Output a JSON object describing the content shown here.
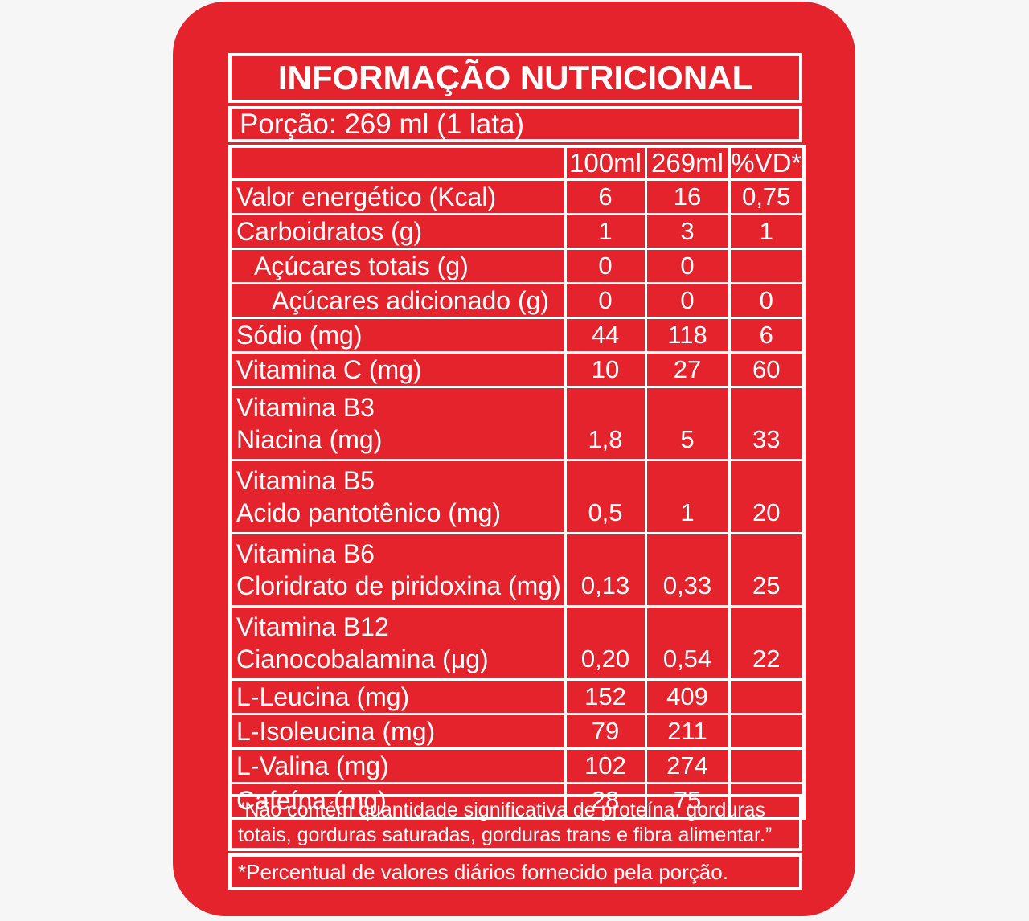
{
  "page": {
    "background_color": "#f6f6f6",
    "card_color": "#e4232c",
    "border_color": "#ffffff",
    "text_color": "#ffffff"
  },
  "header": {
    "title": "INFORMAÇÃO NUTRICIONAL",
    "portion": "Porção: 269 ml (1 lata)"
  },
  "table": {
    "columns": [
      "100ml",
      "269ml",
      "%VD*"
    ],
    "rows": [
      {
        "label": [
          "Valor energético (Kcal)"
        ],
        "indent": 0,
        "values": [
          "6",
          "16",
          "0,75"
        ]
      },
      {
        "label": [
          "Carboidratos (g)"
        ],
        "indent": 0,
        "values": [
          "1",
          "3",
          "1"
        ]
      },
      {
        "label": [
          "Açúcares totais (g)"
        ],
        "indent": 1,
        "values": [
          "0",
          "0",
          ""
        ]
      },
      {
        "label": [
          "Açúcares adicionado (g)"
        ],
        "indent": 2,
        "values": [
          "0",
          "0",
          "0"
        ]
      },
      {
        "label": [
          "Sódio (mg)"
        ],
        "indent": 0,
        "values": [
          "44",
          "118",
          "6"
        ]
      },
      {
        "label": [
          "Vitamina C (mg)"
        ],
        "indent": 0,
        "values": [
          "10",
          "27",
          "60"
        ]
      },
      {
        "label": [
          "Vitamina B3",
          "Niacina (mg)"
        ],
        "indent": 0,
        "values": [
          "1,8",
          "5",
          "33"
        ]
      },
      {
        "label": [
          "Vitamina B5",
          "Acido pantotênico (mg)"
        ],
        "indent": 0,
        "values": [
          "0,5",
          "1",
          "20"
        ]
      },
      {
        "label": [
          "Vitamina B6",
          "Cloridrato de piridoxina (mg)"
        ],
        "indent": 0,
        "values": [
          "0,13",
          "0,33",
          "25"
        ]
      },
      {
        "label": [
          "Vitamina B12",
          "Cianocobalamina (μg)"
        ],
        "indent": 0,
        "values": [
          "0,20",
          "0,54",
          "22"
        ]
      },
      {
        "label": [
          "L-Leucina (mg)"
        ],
        "indent": 0,
        "values": [
          "152",
          "409",
          ""
        ]
      },
      {
        "label": [
          "L-Isoleucina (mg)"
        ],
        "indent": 0,
        "values": [
          "79",
          "211",
          ""
        ]
      },
      {
        "label": [
          "L-Valina (mg)"
        ],
        "indent": 0,
        "values": [
          "102",
          "274",
          ""
        ]
      },
      {
        "label": [
          "Cafeína (mg)"
        ],
        "indent": 0,
        "values": [
          "28",
          "75",
          ""
        ]
      }
    ]
  },
  "footnotes": {
    "no_significant": [
      "“Não contém quantidade significativa de proteína, gorduras",
      "totais, gorduras saturadas, gorduras trans e fibra alimentar.”"
    ],
    "percent_daily": [
      "*Percentual de valores diários fornecido pela porção."
    ]
  }
}
